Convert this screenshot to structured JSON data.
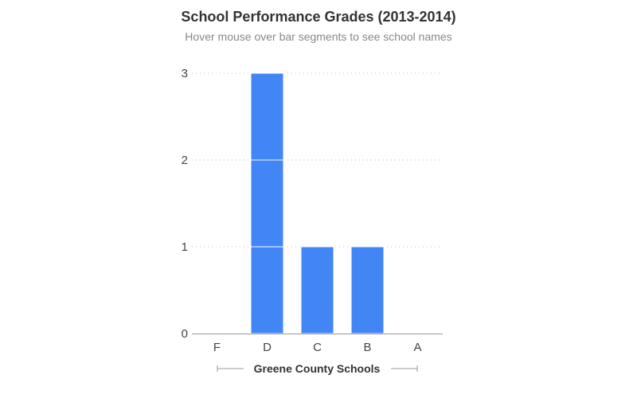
{
  "chart_data": {
    "type": "bar",
    "title": "School Performance Grades (2013-2014)",
    "subtitle": "Hover mouse over bar segments to see school names",
    "xlabel": "Greene County Schools",
    "ylabel": "",
    "categories": [
      "F",
      "D",
      "C",
      "B",
      "A"
    ],
    "values": [
      0,
      3,
      1,
      1,
      0
    ],
    "stacked_segments": true,
    "ylim": [
      0,
      3
    ],
    "yticks": [
      "0",
      "1",
      "2",
      "3"
    ],
    "grid": true,
    "legend": "none",
    "bar_color": "#4285f4",
    "grid_color": "#bbbbbb",
    "axis_color": "#999999"
  }
}
